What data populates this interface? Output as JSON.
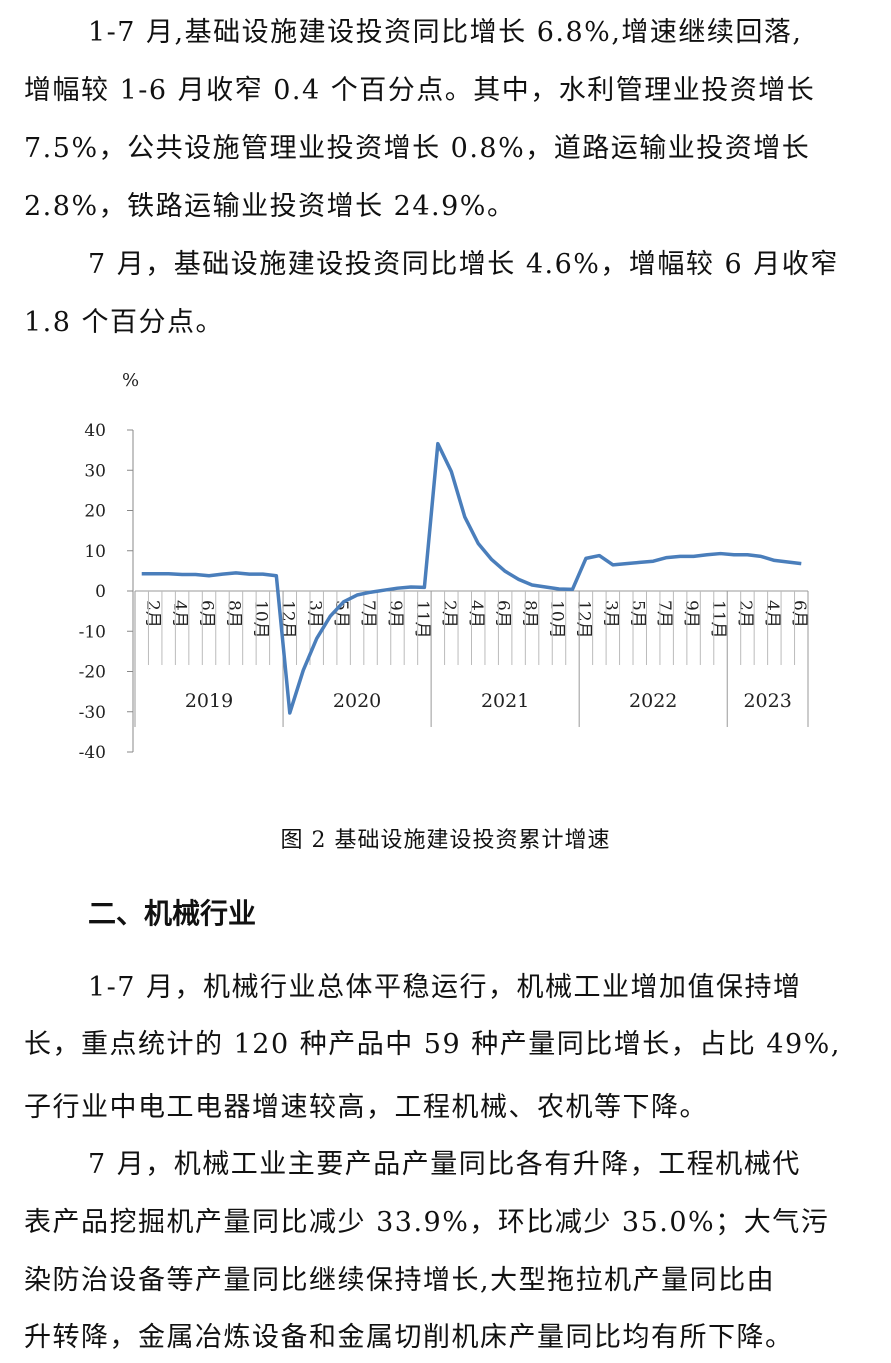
{
  "paragraphs_top": [
    [
      "1-7 月,基础设施建设投资同比增长 6.8%,增速继续回落,",
      "增幅较 1-6 月收窄 0.4 个百分点。其中，水利管理业投资增长",
      "7.5%，公共设施管理业投资增长 0.8%，道路运输业投资增长",
      "2.8%，铁路运输业投资增长 24.9%。"
    ],
    [
      "7 月，基础设施建设投资同比增长 4.6%，增幅较 6 月收窄",
      "1.8 个百分点。"
    ]
  ],
  "figure_caption": "图 2 基础设施建设投资累计增速",
  "section_heading": "二、机械行业",
  "paragraphs_bottom": [
    [
      "1-7 月，机械行业总体平稳运行，机械工业增加值保持增",
      "长，重点统计的 120 种产品中 59 种产量同比增长，占比 49%,",
      "子行业中电工电器增速较高，工程机械、农机等下降。"
    ],
    [
      "7 月，机械工业主要产品产量同比各有升降，工程机械代",
      "表产品挖掘机产量同比减少 33.9%，环比减少 35.0%；大气污",
      "染防治设备等产量同比继续保持增长,大型拖拉机产量同比由",
      "升转降，金属冶炼设备和金属切削机床产量同比均有所下降。"
    ]
  ],
  "chart_data": {
    "type": "line",
    "ylabel": "%",
    "ylim": [
      -40,
      40
    ],
    "yticks": [
      "40",
      "30",
      "20",
      "10",
      "0",
      "-10",
      "-20",
      "-30",
      "-40"
    ],
    "grid": false,
    "line_color": "#4a7ebb",
    "years": [
      {
        "label": "2019",
        "months": [
          "2月",
          "3月",
          "4月",
          "5月",
          "6月",
          "7月",
          "8月",
          "9月",
          "10月",
          "11月",
          "12月"
        ],
        "shown": [
          "2月",
          "4月",
          "6月",
          "8月",
          "10月",
          "12月"
        ],
        "values": [
          4.3,
          4.3,
          4.3,
          4.1,
          4.1,
          3.8,
          4.2,
          4.5,
          4.2,
          4.2,
          3.8
        ]
      },
      {
        "label": "2020",
        "months": [
          "2月",
          "3月",
          "4月",
          "5月",
          "6月",
          "7月",
          "8月",
          "9月",
          "10月",
          "11月",
          "12月"
        ],
        "shown": [
          "3月",
          "5月",
          "7月",
          "9月",
          "11月"
        ],
        "values": [
          -30.3,
          -19.7,
          -11.8,
          -6.3,
          -2.7,
          -1.0,
          -0.3,
          0.2,
          0.7,
          1.0,
          0.9
        ]
      },
      {
        "label": "2021",
        "months": [
          "2月",
          "3月",
          "4月",
          "5月",
          "6月",
          "7月",
          "8月",
          "9月",
          "10月",
          "11月",
          "12月"
        ],
        "shown": [
          "2月",
          "4月",
          "6月",
          "8月",
          "10月",
          "12月"
        ],
        "values": [
          36.6,
          29.7,
          18.4,
          11.8,
          7.8,
          4.9,
          2.9,
          1.5,
          1.0,
          0.5,
          0.4
        ]
      },
      {
        "label": "2022",
        "months": [
          "2月",
          "3月",
          "4月",
          "5月",
          "6月",
          "7月",
          "8月",
          "9月",
          "10月",
          "11月",
          "12月"
        ],
        "shown": [
          "3月",
          "5月",
          "7月",
          "9月",
          "11月"
        ],
        "values": [
          8.1,
          8.8,
          6.5,
          6.8,
          7.1,
          7.4,
          8.3,
          8.6,
          8.6,
          9.0,
          9.3
        ]
      },
      {
        "label": "2023",
        "months": [
          "2月",
          "3月",
          "4月",
          "5月",
          "6月",
          "7月"
        ],
        "shown": [
          "2月",
          "4月",
          "6月"
        ],
        "values": [
          9.0,
          9.0,
          8.6,
          7.6,
          7.2,
          6.8
        ]
      }
    ]
  }
}
